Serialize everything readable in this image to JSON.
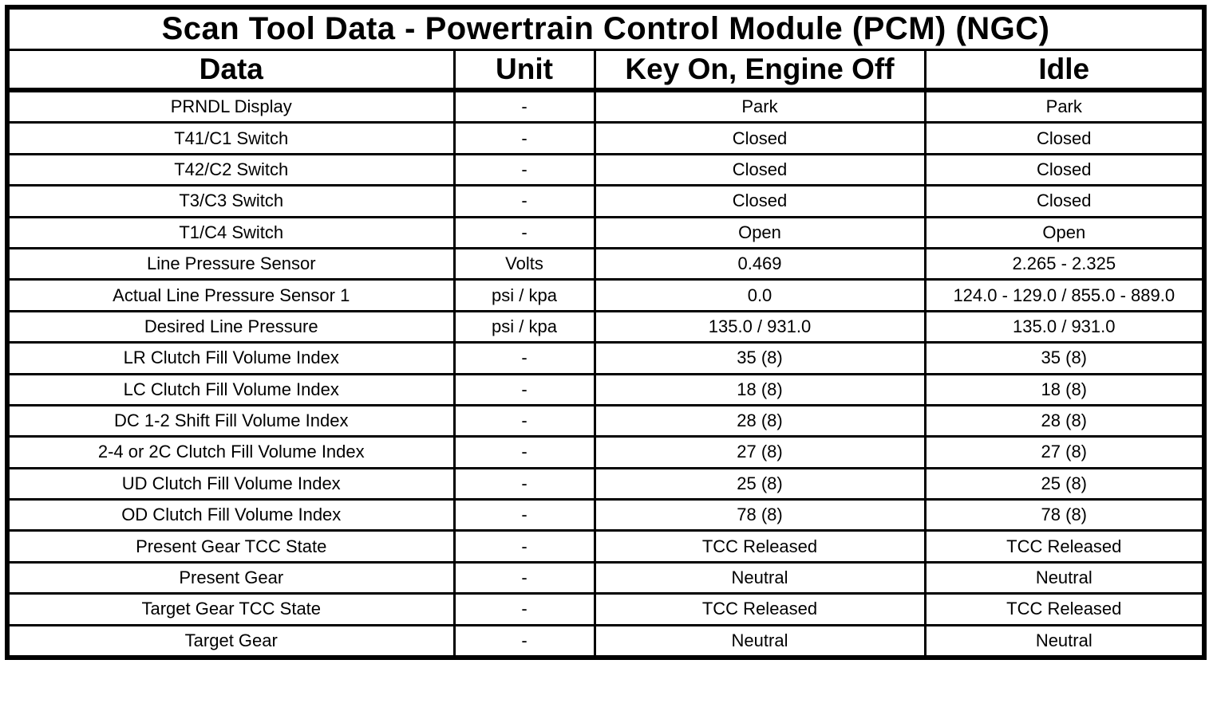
{
  "colors": {
    "border": "#000000",
    "background": "#ffffff",
    "text": "#000000"
  },
  "table": {
    "title": "Scan Tool Data - Powertrain Control Module (PCM) (NGC)",
    "columns": [
      {
        "label": "Data"
      },
      {
        "label": "Unit"
      },
      {
        "label": "Key On, Engine Off"
      },
      {
        "label": "Idle"
      }
    ],
    "rows": [
      [
        "PRNDL Display",
        "-",
        "Park",
        "Park"
      ],
      [
        "T41/C1 Switch",
        "-",
        "Closed",
        "Closed"
      ],
      [
        "T42/C2 Switch",
        "-",
        "Closed",
        "Closed"
      ],
      [
        "T3/C3 Switch",
        "-",
        "Closed",
        "Closed"
      ],
      [
        "T1/C4 Switch",
        "-",
        "Open",
        "Open"
      ],
      [
        "Line Pressure Sensor",
        "Volts",
        "0.469",
        "2.265 - 2.325"
      ],
      [
        "Actual Line Pressure Sensor 1",
        "psi / kpa",
        "0.0",
        "124.0 - 129.0 / 855.0 - 889.0"
      ],
      [
        "Desired Line Pressure",
        "psi / kpa",
        "135.0 / 931.0",
        "135.0 / 931.0"
      ],
      [
        "LR Clutch Fill Volume Index",
        "-",
        "35 (8)",
        "35 (8)"
      ],
      [
        "LC Clutch Fill Volume Index",
        "-",
        "18 (8)",
        "18 (8)"
      ],
      [
        "DC 1-2 Shift Fill Volume Index",
        "-",
        "28 (8)",
        "28 (8)"
      ],
      [
        "2-4 or 2C Clutch Fill Volume Index",
        "-",
        "27 (8)",
        "27 (8)"
      ],
      [
        "UD Clutch Fill Volume Index",
        "-",
        "25 (8)",
        "25 (8)"
      ],
      [
        "OD Clutch Fill Volume Index",
        "-",
        "78 (8)",
        "78 (8)"
      ],
      [
        "Present Gear TCC State",
        "-",
        "TCC Released",
        "TCC Released"
      ],
      [
        "Present Gear",
        "-",
        "Neutral",
        "Neutral"
      ],
      [
        "Target Gear TCC State",
        "-",
        "TCC Released",
        "TCC Released"
      ],
      [
        "Target Gear",
        "-",
        "Neutral",
        "Neutral"
      ]
    ]
  }
}
